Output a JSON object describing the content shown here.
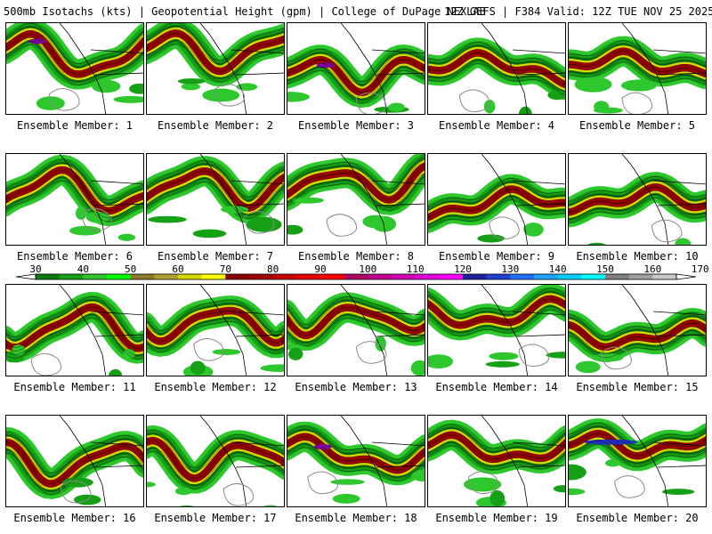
{
  "header": {
    "left_text": "500mb Isotachs (kts) | Geopotential Height (gpm) | College of DuPage NEXLAB",
    "right_text": "12Z GEFS | F384 Valid: 12Z TUE NOV 25 2025"
  },
  "colorbar": {
    "ticks": [
      "30",
      "40",
      "50",
      "60",
      "70",
      "80",
      "90",
      "100",
      "110",
      "120",
      "130",
      "140",
      "150",
      "160",
      "170"
    ],
    "colors": [
      "#0e7a0e",
      "#16a016",
      "#2ec82e",
      "#00ff00",
      "#8c7a2a",
      "#b0a030",
      "#d8d800",
      "#ffff00",
      "#8b0000",
      "#a30000",
      "#c40000",
      "#e60000",
      "#ff0000",
      "#b00060",
      "#c0008c",
      "#d000b4",
      "#e000e0",
      "#ff00ff",
      "#2020a0",
      "#2040d0",
      "#2070ff",
      "#20a0ff",
      "#00d0ff",
      "#00ffff",
      "#808080",
      "#a0a0a0",
      "#c8c8c8"
    ]
  },
  "members": [
    {
      "label": "Ensemble Member: 1"
    },
    {
      "label": "Ensemble Member: 2"
    },
    {
      "label": "Ensemble Member: 3"
    },
    {
      "label": "Ensemble Member: 4"
    },
    {
      "label": "Ensemble Member: 5"
    },
    {
      "label": "Ensemble Member: 6"
    },
    {
      "label": "Ensemble Member: 7"
    },
    {
      "label": "Ensemble Member: 8"
    },
    {
      "label": "Ensemble Member: 9"
    },
    {
      "label": "Ensemble Member: 10"
    },
    {
      "label": "Ensemble Member: 11"
    },
    {
      "label": "Ensemble Member: 12"
    },
    {
      "label": "Ensemble Member: 13"
    },
    {
      "label": "Ensemble Member: 14"
    },
    {
      "label": "Ensemble Member: 15"
    },
    {
      "label": "Ensemble Member: 16"
    },
    {
      "label": "Ensemble Member: 17"
    },
    {
      "label": "Ensemble Member: 18"
    },
    {
      "label": "Ensemble Member: 19"
    },
    {
      "label": "Ensemble Member: 20"
    }
  ]
}
